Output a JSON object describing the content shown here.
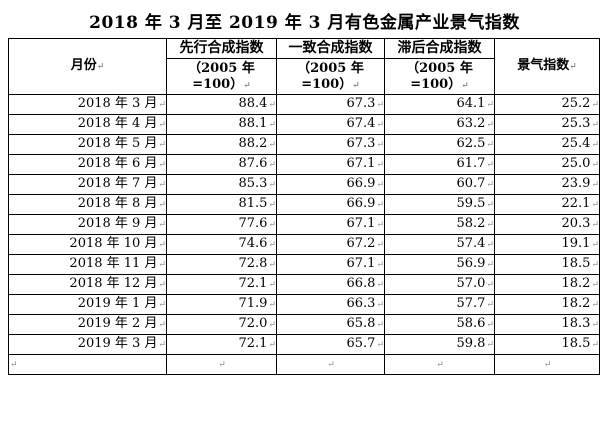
{
  "title": "2018 年 3 月至 2019 年 3 月有色金属产业景气指数",
  "headers": {
    "month": "月份",
    "leading_name": "先行合成指数",
    "coincident_name": "一致合成指数",
    "lagging_name": "滞后合成指数",
    "base_line1": "（2005 年",
    "base_line2": "=100）",
    "prosperity": "景气指数"
  },
  "para_mark": "↵",
  "rows": [
    {
      "month": "2018 年 3 月",
      "leading": "88.4",
      "coincident": "67.3",
      "lagging": "64.1",
      "prosperity": "25.2"
    },
    {
      "month": "2018 年 4 月",
      "leading": "88.1",
      "coincident": "67.4",
      "lagging": "63.2",
      "prosperity": "25.3"
    },
    {
      "month": "2018 年 5 月",
      "leading": "88.2",
      "coincident": "67.3",
      "lagging": "62.5",
      "prosperity": "25.4"
    },
    {
      "month": "2018 年 6 月",
      "leading": "87.6",
      "coincident": "67.1",
      "lagging": "61.7",
      "prosperity": "25.0"
    },
    {
      "month": "2018 年 7 月",
      "leading": "85.3",
      "coincident": "66.9",
      "lagging": "60.7",
      "prosperity": "23.9"
    },
    {
      "month": "2018 年 8 月",
      "leading": "81.5",
      "coincident": "66.9",
      "lagging": "59.5",
      "prosperity": "22.1"
    },
    {
      "month": "2018 年 9 月",
      "leading": "77.6",
      "coincident": "67.1",
      "lagging": "58.2",
      "prosperity": "20.3"
    },
    {
      "month": "2018 年 10 月",
      "leading": "74.6",
      "coincident": "67.2",
      "lagging": "57.4",
      "prosperity": "19.1"
    },
    {
      "month": "2018 年 11 月",
      "leading": "72.8",
      "coincident": "67.1",
      "lagging": "56.9",
      "prosperity": "18.5"
    },
    {
      "month": "2018 年 12 月",
      "leading": "72.1",
      "coincident": "66.8",
      "lagging": "57.0",
      "prosperity": "18.2"
    },
    {
      "month": "2019 年 1 月",
      "leading": "71.9",
      "coincident": "66.3",
      "lagging": "57.7",
      "prosperity": "18.2"
    },
    {
      "month": "2019 年 2 月",
      "leading": "72.0",
      "coincident": "65.8",
      "lagging": "58.6",
      "prosperity": "18.3"
    },
    {
      "month": "2019 年 3 月",
      "leading": "72.1",
      "coincident": "65.7",
      "lagging": "59.8",
      "prosperity": "18.5"
    }
  ]
}
